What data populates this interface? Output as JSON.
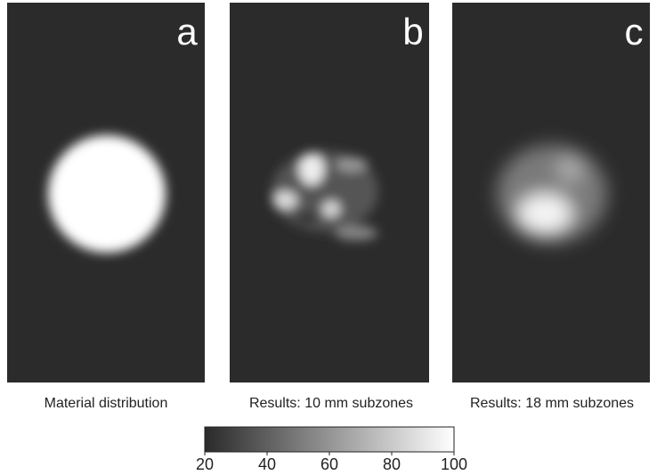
{
  "panels": [
    {
      "label": "a",
      "caption": "Material distribution"
    },
    {
      "label": "b",
      "caption": "Results: 10 mm subzones"
    },
    {
      "label": "c",
      "caption": "Results: 18 mm subzones"
    }
  ],
  "colorbar": {
    "lim": [
      20,
      100
    ],
    "ticks": [
      20,
      40,
      60,
      80,
      100
    ]
  }
}
